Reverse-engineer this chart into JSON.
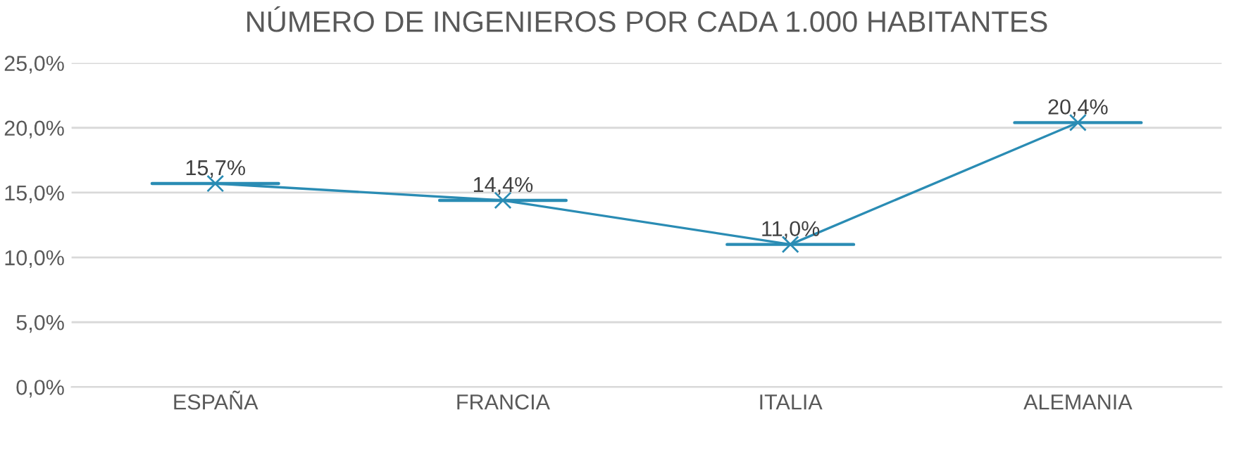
{
  "chart_data": {
    "type": "line",
    "title": "NÚMERO DE INGENIEROS POR CADA 1.000 HABITANTES",
    "categories": [
      "ESPAÑA",
      "FRANCIA",
      "ITALIA",
      "ALEMANIA"
    ],
    "series": [
      {
        "color": "#2a8cb4",
        "values": [
          15.7,
          14.4,
          11.0,
          20.4
        ],
        "value_labels": [
          "15,7%",
          "14,4%",
          "11,0%",
          "20,4%"
        ]
      }
    ],
    "ylim": [
      0,
      25
    ],
    "yticks": [
      {
        "value": 0,
        "label": "0,0%"
      },
      {
        "value": 5,
        "label": "5,0%"
      },
      {
        "value": 10,
        "label": "10,0%"
      },
      {
        "value": 15,
        "label": "15,0%"
      },
      {
        "value": 20,
        "label": "20,0%"
      },
      {
        "value": 25,
        "label": "25,0%"
      }
    ],
    "grid": "y",
    "marker": "cross",
    "line_style": "solid",
    "legend": false
  }
}
